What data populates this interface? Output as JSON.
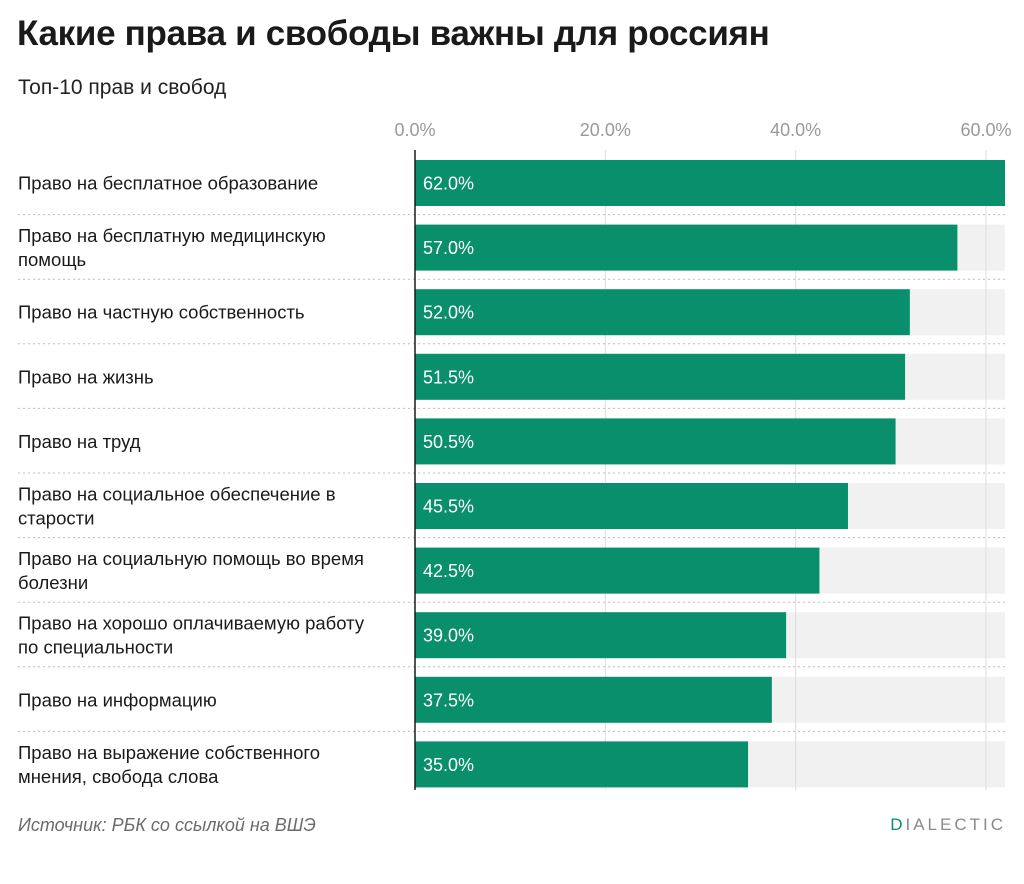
{
  "title": "Какие права и свободы важны для россиян",
  "subtitle": "Топ-10 прав и свобод",
  "source": "Источник: РБК со ссылкой на ВШЭ",
  "brand": {
    "accent_letter": "D",
    "rest": "IALECTIC"
  },
  "colors": {
    "bar": "#0a8f6c",
    "track": "#f1f1f1",
    "grid": "#dddddd",
    "axis": "#1a1a1a",
    "separator": "#bdbdbd"
  },
  "chart_data": {
    "type": "bar",
    "orientation": "horizontal",
    "categories": [
      [
        "Право на бесплатное образование"
      ],
      [
        "Право на бесплатную медицинскую",
        "помощь"
      ],
      [
        "Право на частную собственность"
      ],
      [
        "Право на жизнь"
      ],
      [
        "Право на труд"
      ],
      [
        "Право на социальное обеспечение в",
        "старости"
      ],
      [
        "Право на социальную помощь во время",
        "болезни"
      ],
      [
        "Право на хорошо оплачиваемую работу",
        "по специальности"
      ],
      [
        "Право на информацию"
      ],
      [
        "Право на выражение собственного",
        "мнения, свобода слова"
      ]
    ],
    "values": [
      62.0,
      57.0,
      52.0,
      51.5,
      50.5,
      45.5,
      42.5,
      39.0,
      37.5,
      35.0
    ],
    "value_labels": [
      "62.0%",
      "57.0%",
      "52.0%",
      "51.5%",
      "50.5%",
      "45.5%",
      "42.5%",
      "39.0%",
      "37.5%",
      "35.0%"
    ],
    "ticks": [
      0,
      20,
      40,
      60
    ],
    "tick_labels": [
      "0.0%",
      "20.0%",
      "40.0%",
      "60.0%"
    ],
    "xlim": [
      0,
      62
    ],
    "grid": true,
    "xlabel": "",
    "ylabel": ""
  }
}
